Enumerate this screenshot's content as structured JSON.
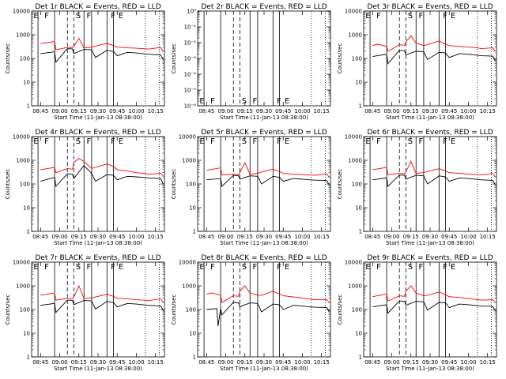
{
  "chart_data": [
    {
      "type": "line",
      "title": "Det 1r BLACK = Events, RED = LLD",
      "xlabel": "Start Time (11-Jan-13 08:38:00)",
      "ylabel": "Counts/sec",
      "x_ticks": [
        "08:45",
        "09:00",
        "09:15",
        "09:30",
        "09:45",
        "10:00",
        "10:15"
      ],
      "y_ticks": [
        "1",
        "10",
        "100",
        "1000",
        "10000"
      ],
      "ylog": true,
      "ylim": [
        1,
        10000
      ],
      "markers": [
        "E",
        "F",
        "S",
        "F",
        "F",
        "E"
      ],
      "series": [
        {
          "name": "Events",
          "color": "#000000",
          "x": [
            0,
            11,
            12,
            21,
            25,
            26,
            34,
            40,
            43,
            52,
            57,
            60,
            68,
            75,
            80,
            85,
            94,
            96
          ],
          "y": [
            160,
            190,
            70,
            260,
            250,
            160,
            240,
            230,
            110,
            220,
            200,
            130,
            180,
            170,
            160,
            150,
            140,
            95
          ]
        },
        {
          "name": "LLD",
          "color": "#ff0000",
          "x": [
            0,
            11,
            12,
            21,
            25,
            26,
            30,
            34,
            40,
            43,
            52,
            57,
            60,
            68,
            75,
            80,
            85,
            94,
            96
          ],
          "y": [
            420,
            520,
            230,
            290,
            280,
            320,
            700,
            280,
            300,
            330,
            430,
            350,
            300,
            280,
            270,
            260,
            250,
            290,
            200
          ]
        }
      ]
    },
    {
      "type": "line",
      "title": "Det 2r BLACK = Events, RED = LLD",
      "xlabel": "Start Time (11-Jan-13 08:38:00)",
      "ylabel": "Counts/sec",
      "x_ticks": [
        "08:45",
        "09:00",
        "09:15",
        "09:30",
        "09:45",
        "10:00",
        "10:15"
      ],
      "y_ticks": [
        "10⁻⁶",
        "10⁻⁵",
        "10⁻⁴",
        "10⁻³",
        "10⁻²",
        "10⁻¹",
        "10⁰"
      ],
      "ylog": true,
      "ylim": [
        1e-06,
        1
      ],
      "markers": [
        "E",
        "F",
        "S",
        "F",
        "F",
        "E"
      ],
      "series": []
    },
    {
      "type": "line",
      "title": "Det 3r BLACK = Events, RED = LLD",
      "xlabel": "Start Time (11-Jan-13 08:38:00)",
      "ylabel": "Counts/sec",
      "x_ticks": [
        "08:45",
        "09:00",
        "09:15",
        "09:30",
        "09:45",
        "10:00",
        "10:15"
      ],
      "y_ticks": [
        "1",
        "10",
        "100",
        "1000",
        "10000"
      ],
      "ylog": true,
      "ylim": [
        1,
        10000
      ],
      "markers": [
        "E",
        "F",
        "S",
        "F",
        "F",
        "E"
      ],
      "series": [
        {
          "name": "Events",
          "color": "#000000",
          "x": [
            0,
            11,
            12,
            21,
            25,
            26,
            34,
            40,
            43,
            52,
            57,
            60,
            68,
            75,
            80,
            85,
            94,
            96
          ],
          "y": [
            120,
            150,
            60,
            220,
            210,
            140,
            200,
            190,
            90,
            180,
            170,
            110,
            160,
            150,
            140,
            130,
            125,
            80
          ]
        },
        {
          "name": "LLD",
          "color": "#ff0000",
          "x": [
            0,
            4,
            11,
            12,
            21,
            25,
            26,
            30,
            34,
            40,
            43,
            52,
            57,
            60,
            68,
            75,
            80,
            85,
            94,
            96
          ],
          "y": [
            350,
            400,
            320,
            200,
            380,
            360,
            500,
            900,
            450,
            350,
            380,
            550,
            400,
            350,
            320,
            300,
            290,
            260,
            280,
            200
          ]
        }
      ]
    },
    {
      "type": "line",
      "title": "Det 4r BLACK = Events, RED = LLD",
      "xlabel": "Start Time (11-Jan-13 08:38:00)",
      "ylabel": "Counts/sec",
      "x_ticks": [
        "08:45",
        "09:00",
        "09:15",
        "09:30",
        "09:45",
        "10:00",
        "10:15"
      ],
      "y_ticks": [
        "1",
        "10",
        "100",
        "1000",
        "10000"
      ],
      "ylog": true,
      "ylim": [
        1,
        10000
      ],
      "markers": [
        "E",
        "F",
        "S",
        "F",
        "F",
        "E"
      ],
      "series": [
        {
          "name": "Events",
          "color": "#000000",
          "x": [
            0,
            11,
            12,
            21,
            25,
            26,
            34,
            40,
            43,
            52,
            57,
            60,
            68,
            75,
            80,
            85,
            94,
            96
          ],
          "y": [
            130,
            190,
            80,
            270,
            260,
            170,
            600,
            280,
            130,
            250,
            230,
            150,
            210,
            200,
            190,
            180,
            170,
            100
          ]
        },
        {
          "name": "LLD",
          "color": "#ff0000",
          "x": [
            0,
            11,
            12,
            21,
            25,
            26,
            30,
            34,
            40,
            43,
            52,
            57,
            60,
            68,
            75,
            80,
            85,
            94,
            96
          ],
          "y": [
            400,
            500,
            300,
            450,
            420,
            800,
            1200,
            900,
            450,
            500,
            700,
            550,
            400,
            350,
            300,
            280,
            260,
            280,
            220
          ]
        }
      ]
    },
    {
      "type": "line",
      "title": "Det 5r BLACK = Events, RED = LLD",
      "xlabel": "Start Time (11-Jan-13 08:38:00)",
      "ylabel": "Counts/sec",
      "x_ticks": [
        "08:45",
        "09:00",
        "09:15",
        "09:30",
        "09:45",
        "10:00",
        "10:15"
      ],
      "y_ticks": [
        "1",
        "10",
        "100",
        "1000",
        "10000"
      ],
      "ylog": true,
      "ylim": [
        1,
        10000
      ],
      "markers": [
        "E",
        "F",
        "S",
        "F",
        "F",
        "E"
      ],
      "series": [
        {
          "name": "Events",
          "color": "#000000",
          "x": [
            0,
            11,
            12,
            21,
            25,
            26,
            34,
            40,
            43,
            52,
            57,
            60,
            68,
            75,
            80,
            85,
            94,
            96
          ],
          "y": [
            150,
            170,
            80,
            230,
            220,
            160,
            220,
            210,
            100,
            210,
            190,
            130,
            170,
            160,
            150,
            145,
            140,
            90
          ]
        },
        {
          "name": "LLD",
          "color": "#ff0000",
          "x": [
            0,
            11,
            12,
            21,
            25,
            26,
            30,
            34,
            40,
            43,
            52,
            57,
            60,
            68,
            75,
            80,
            85,
            94,
            96
          ],
          "y": [
            380,
            480,
            240,
            260,
            250,
            300,
            800,
            260,
            280,
            320,
            420,
            340,
            280,
            260,
            250,
            240,
            230,
            270,
            190
          ]
        }
      ]
    },
    {
      "type": "line",
      "title": "Det 6r BLACK = Events, RED = LLD",
      "xlabel": "Start Time (11-Jan-13 08:38:00)",
      "ylabel": "Counts/sec",
      "x_ticks": [
        "08:45",
        "09:00",
        "09:15",
        "09:30",
        "09:45",
        "10:00",
        "10:15"
      ],
      "y_ticks": [
        "1",
        "10",
        "100",
        "1000",
        "10000"
      ],
      "ylog": true,
      "ylim": [
        1,
        10000
      ],
      "markers": [
        "E",
        "F",
        "S",
        "F",
        "F",
        "E"
      ],
      "series": [
        {
          "name": "Events",
          "color": "#000000",
          "x": [
            0,
            11,
            12,
            21,
            25,
            26,
            34,
            40,
            43,
            52,
            57,
            60,
            68,
            75,
            80,
            85,
            94,
            96
          ],
          "y": [
            150,
            180,
            80,
            240,
            230,
            160,
            230,
            220,
            100,
            220,
            200,
            130,
            180,
            170,
            160,
            150,
            140,
            95
          ]
        },
        {
          "name": "LLD",
          "color": "#ff0000",
          "x": [
            0,
            11,
            12,
            21,
            25,
            26,
            30,
            34,
            40,
            43,
            52,
            57,
            60,
            68,
            75,
            80,
            85,
            94,
            96
          ],
          "y": [
            400,
            500,
            250,
            280,
            270,
            320,
            900,
            280,
            300,
            340,
            440,
            360,
            300,
            280,
            260,
            250,
            240,
            280,
            200
          ]
        }
      ]
    },
    {
      "type": "line",
      "title": "Det 7r BLACK = Events, RED = LLD",
      "xlabel": "Start Time (11-Jan-13 08:38:00)",
      "ylabel": "Counts/sec",
      "x_ticks": [
        "08:45",
        "09:00",
        "09:15",
        "09:30",
        "09:45",
        "10:00",
        "10:15"
      ],
      "y_ticks": [
        "1",
        "10",
        "100",
        "1000",
        "10000"
      ],
      "ylog": true,
      "ylim": [
        1,
        10000
      ],
      "markers": [
        "E",
        "F",
        "S",
        "F",
        "F",
        "E"
      ],
      "series": [
        {
          "name": "Events",
          "color": "#000000",
          "x": [
            0,
            11,
            12,
            21,
            25,
            26,
            34,
            40,
            43,
            52,
            57,
            60,
            68,
            75,
            80,
            85,
            94,
            96
          ],
          "y": [
            150,
            180,
            75,
            250,
            240,
            160,
            240,
            230,
            105,
            220,
            200,
            130,
            180,
            170,
            160,
            150,
            140,
            95
          ]
        },
        {
          "name": "LLD",
          "color": "#ff0000",
          "x": [
            0,
            11,
            12,
            21,
            25,
            26,
            30,
            34,
            40,
            43,
            52,
            57,
            60,
            68,
            75,
            80,
            85,
            94,
            96
          ],
          "y": [
            400,
            500,
            250,
            290,
            280,
            330,
            1000,
            290,
            310,
            340,
            440,
            360,
            300,
            280,
            260,
            250,
            240,
            280,
            200
          ]
        }
      ]
    },
    {
      "type": "line",
      "title": "Det 8r BLACK = Events, RED = LLD",
      "xlabel": "Start Time (11-Jan-13 08:38:00)",
      "ylabel": "Counts/sec",
      "x_ticks": [
        "08:45",
        "09:00",
        "09:15",
        "09:30",
        "09:45",
        "10:00",
        "10:15"
      ],
      "y_ticks": [
        "1",
        "10",
        "100",
        "1000",
        "10000"
      ],
      "ylog": true,
      "ylim": [
        1,
        10000
      ],
      "markers": [
        "E",
        "F",
        "S",
        "F",
        "F",
        "E"
      ],
      "series": [
        {
          "name": "Events",
          "color": "#000000",
          "x": [
            0,
            8,
            9,
            11,
            12,
            21,
            25,
            26,
            34,
            40,
            43,
            52,
            57,
            60,
            68,
            75,
            80,
            85,
            94,
            96
          ],
          "y": [
            100,
            110,
            20,
            110,
            60,
            200,
            190,
            130,
            190,
            180,
            80,
            170,
            160,
            100,
            150,
            140,
            130,
            125,
            120,
            80
          ]
        },
        {
          "name": "LLD",
          "color": "#ff0000",
          "x": [
            0,
            4,
            11,
            12,
            21,
            25,
            26,
            30,
            34,
            40,
            43,
            52,
            57,
            60,
            68,
            75,
            80,
            85,
            94,
            96
          ],
          "y": [
            450,
            500,
            400,
            200,
            380,
            360,
            600,
            1000,
            500,
            400,
            400,
            600,
            450,
            380,
            340,
            300,
            280,
            260,
            260,
            200
          ]
        }
      ]
    },
    {
      "type": "line",
      "title": "Det 9r BLACK = Events, RED = LLD",
      "xlabel": "Start Time (11-Jan-13 08:38:00)",
      "ylabel": "Counts/sec",
      "x_ticks": [
        "08:45",
        "09:00",
        "09:15",
        "09:30",
        "09:45",
        "10:00",
        "10:15"
      ],
      "y_ticks": [
        "1",
        "10",
        "100",
        "1000",
        "10000"
      ],
      "ylog": true,
      "ylim": [
        1,
        10000
      ],
      "markers": [
        "E",
        "F",
        "S",
        "F",
        "F",
        "E"
      ],
      "series": [
        {
          "name": "Events",
          "color": "#000000",
          "x": [
            0,
            11,
            12,
            21,
            25,
            26,
            34,
            40,
            43,
            52,
            57,
            60,
            68,
            75,
            80,
            85,
            94,
            96
          ],
          "y": [
            130,
            160,
            70,
            230,
            220,
            150,
            220,
            210,
            95,
            200,
            190,
            120,
            170,
            160,
            150,
            140,
            135,
            90
          ]
        },
        {
          "name": "LLD",
          "color": "#ff0000",
          "x": [
            0,
            11,
            12,
            21,
            25,
            26,
            30,
            34,
            40,
            43,
            52,
            57,
            60,
            68,
            75,
            80,
            85,
            94,
            96
          ],
          "y": [
            350,
            450,
            230,
            380,
            360,
            600,
            1000,
            500,
            380,
            400,
            550,
            420,
            350,
            320,
            290,
            270,
            250,
            260,
            200
          ]
        }
      ]
    }
  ]
}
